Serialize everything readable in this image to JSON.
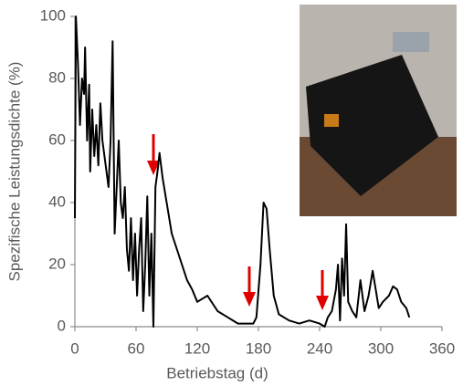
{
  "chart_data": {
    "type": "line",
    "x_label": "Betriebstag (d)",
    "y_label": "Spezifische  Leistungsdichte (%)",
    "xlim": [
      0,
      360
    ],
    "xticks": [
      0,
      60,
      120,
      180,
      240,
      300,
      360
    ],
    "ylim": [
      0,
      100
    ],
    "yticks": [
      0,
      20,
      40,
      60,
      80,
      100
    ],
    "series": [
      {
        "color": "#000000",
        "x": [
          0,
          1,
          3,
          5,
          7,
          9,
          10,
          12,
          14,
          15,
          17,
          19,
          21,
          23,
          25,
          27,
          29,
          31,
          33,
          35,
          37,
          39,
          41,
          43,
          45,
          47,
          49,
          51,
          53,
          55,
          57,
          59,
          61,
          63,
          65,
          67,
          69,
          71,
          73,
          75,
          77,
          79,
          81,
          83,
          86,
          90,
          95,
          100,
          105,
          110,
          115,
          120,
          130,
          140,
          150,
          160,
          170,
          175,
          178,
          182,
          185,
          188,
          191,
          195,
          200,
          210,
          220,
          230,
          240,
          245,
          248,
          252,
          256,
          258,
          260,
          262,
          264,
          266,
          268,
          272,
          276,
          280,
          284,
          288,
          292,
          295,
          298,
          302,
          308,
          312,
          316,
          320,
          325,
          328
        ],
        "values": [
          35,
          100,
          85,
          65,
          80,
          75,
          90,
          60,
          78,
          50,
          70,
          55,
          65,
          52,
          72,
          60,
          55,
          50,
          45,
          60,
          92,
          30,
          45,
          60,
          40,
          35,
          45,
          25,
          18,
          35,
          15,
          30,
          10,
          25,
          35,
          5,
          20,
          42,
          10,
          30,
          0,
          45,
          50,
          56,
          48,
          40,
          30,
          25,
          20,
          15,
          12,
          8,
          10,
          5,
          3,
          1,
          1,
          1,
          3,
          20,
          40,
          38,
          25,
          10,
          4,
          2,
          1,
          2,
          1,
          0,
          3,
          5,
          12,
          20,
          2,
          22,
          10,
          33,
          8,
          5,
          3,
          15,
          5,
          10,
          18,
          12,
          6,
          8,
          10,
          13,
          12,
          8,
          6,
          3
        ]
      }
    ]
  }
}
